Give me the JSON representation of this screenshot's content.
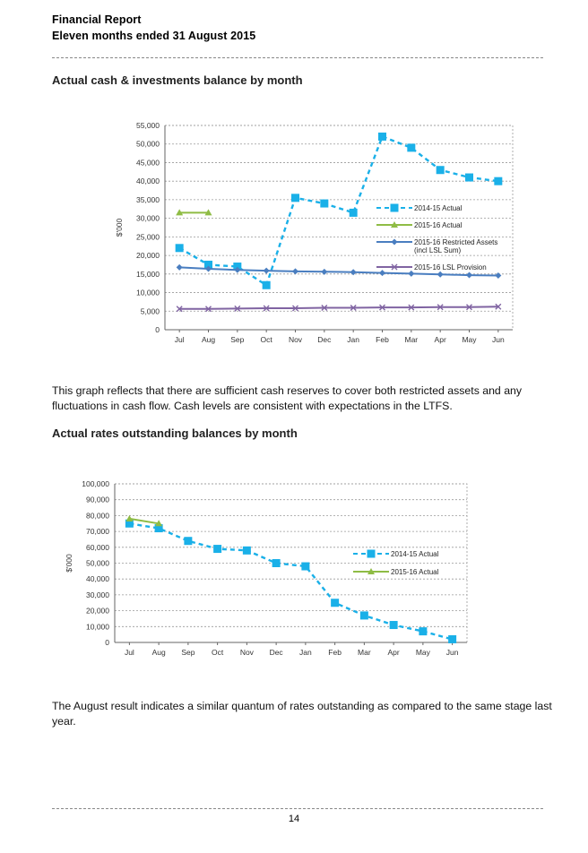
{
  "header": {
    "line1": "Financial Report",
    "line2": "Eleven months ended 31 August 2015"
  },
  "section1": {
    "title": "Actual cash & investments balance by month",
    "paragraph": "This graph reflects that there are sufficient cash reserves to cover both restricted assets and any fluctuations in cash flow. Cash levels are consistent with expectations in the LTFS."
  },
  "section2": {
    "title": "Actual rates outstanding balances by month",
    "paragraph": "The August result indicates a similar quantum of rates outstanding as compared to the same stage last year."
  },
  "footer": {
    "page_number": "14"
  },
  "chart_data": [
    {
      "type": "line",
      "title": "",
      "ylabel": "$'000",
      "xlabel": "",
      "categories": [
        "Jul",
        "Aug",
        "Sep",
        "Oct",
        "Nov",
        "Dec",
        "Jan",
        "Feb",
        "Mar",
        "Apr",
        "May",
        "Jun"
      ],
      "ylim": [
        0,
        55000
      ],
      "yticks": [
        "0",
        "5,000",
        "10,000",
        "15,000",
        "20,000",
        "25,000",
        "30,000",
        "35,000",
        "40,000",
        "45,000",
        "50,000",
        "55,000"
      ],
      "grid": true,
      "legend_position": "right",
      "series": [
        {
          "name": "2014-15 Actual",
          "color": "#1ab0e8",
          "style": "dashed",
          "marker": "square",
          "values": [
            22000,
            17500,
            17000,
            12000,
            35500,
            34000,
            31500,
            52000,
            49000,
            43000,
            41000,
            40000
          ]
        },
        {
          "name": "2015-16 Actual",
          "color": "#8fbc45",
          "style": "solid",
          "marker": "triangle",
          "values": [
            31500,
            31500,
            null,
            null,
            null,
            null,
            null,
            null,
            null,
            null,
            null,
            null
          ]
        },
        {
          "name": "2015-16 Restricted Assets (incl LSL Sum)",
          "color": "#4a7ec0",
          "style": "solid",
          "marker": "diamond",
          "values": [
            16800,
            16400,
            16100,
            15900,
            15700,
            15600,
            15500,
            15300,
            15100,
            14900,
            14700,
            14600
          ]
        },
        {
          "name": "2015-16 LSL Provision",
          "color": "#8064a2",
          "style": "solid",
          "marker": "x",
          "values": [
            5600,
            5600,
            5700,
            5800,
            5800,
            5900,
            5900,
            6000,
            6000,
            6100,
            6100,
            6200
          ]
        }
      ],
      "legend_lines": [
        [
          "2014-15 Actual"
        ],
        [
          "2015-16 Actual"
        ],
        [
          "2015-16 Restricted Assets",
          "(incl LSL Sum)"
        ],
        [
          "2015-16 LSL Provision"
        ]
      ]
    },
    {
      "type": "line",
      "title": "",
      "ylabel": "$'000",
      "xlabel": "",
      "categories": [
        "Jul",
        "Aug",
        "Sep",
        "Oct",
        "Nov",
        "Dec",
        "Jan",
        "Feb",
        "Mar",
        "Apr",
        "May",
        "Jun"
      ],
      "ylim": [
        0,
        100000
      ],
      "yticks": [
        "0",
        "10,000",
        "20,000",
        "30,000",
        "40,000",
        "50,000",
        "60,000",
        "70,000",
        "80,000",
        "90,000",
        "100,000"
      ],
      "grid": true,
      "legend_position": "right",
      "series": [
        {
          "name": "2014-15 Actual",
          "color": "#1ab0e8",
          "style": "dashed",
          "marker": "square",
          "values": [
            75000,
            72000,
            64000,
            59000,
            58000,
            50000,
            48000,
            25000,
            17000,
            11000,
            7000,
            2000
          ]
        },
        {
          "name": "2015-16 Actual",
          "color": "#8fbc45",
          "style": "solid",
          "marker": "triangle",
          "values": [
            78000,
            75000,
            null,
            null,
            null,
            null,
            null,
            null,
            null,
            null,
            null,
            null
          ]
        }
      ],
      "legend_lines": [
        [
          "2014-15 Actual"
        ],
        [
          "2015-16 Actual"
        ]
      ]
    }
  ]
}
